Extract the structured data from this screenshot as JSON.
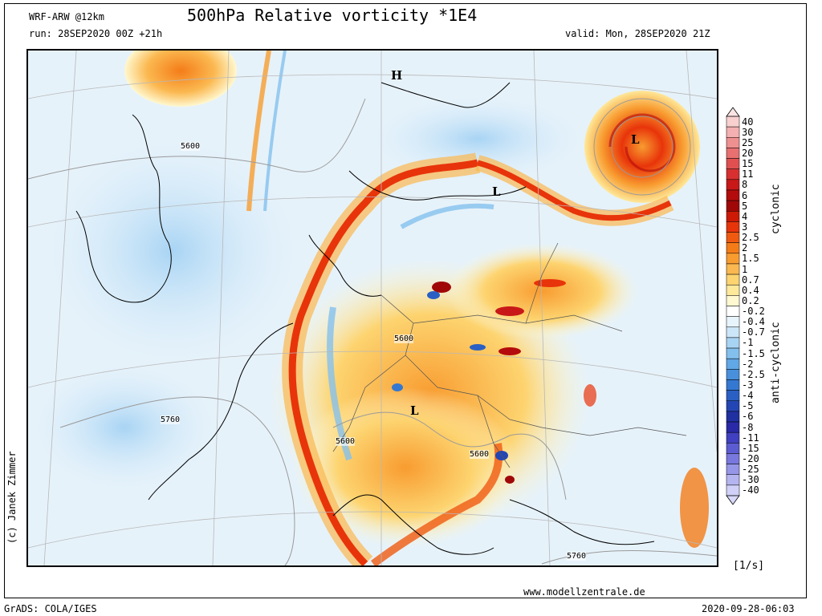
{
  "header": {
    "model": "WRF-ARW @12km",
    "title": "500hPa Relative vorticity *1E4",
    "run": "run: 28SEP2020 00Z +21h",
    "valid": "valid: Mon, 28SEP2020 21Z"
  },
  "map": {
    "pressure_markers": [
      {
        "label": "H"
      },
      {
        "label": "L"
      },
      {
        "label": "L"
      },
      {
        "label": "L"
      }
    ],
    "contour_labels": [
      "5600",
      "5600",
      "5600",
      "5600",
      "5760",
      "5760"
    ]
  },
  "colorbar": {
    "labels": [
      "40",
      "30",
      "25",
      "20",
      "15",
      "11",
      "8",
      "6",
      "5",
      "4",
      "3",
      "2.5",
      "2",
      "1.5",
      "1",
      "0.7",
      "0.4",
      "0.2",
      "-0.2",
      "-0.4",
      "-0.7",
      "-1",
      "-1.5",
      "-2",
      "-2.5",
      "-3",
      "-4",
      "-5",
      "-6",
      "-8",
      "-11",
      "-15",
      "-20",
      "-25",
      "-30",
      "-40"
    ],
    "colors": [
      "#f8d0d0",
      "#f4b0b0",
      "#ef9090",
      "#e87070",
      "#e05050",
      "#d83030",
      "#c81818",
      "#b40c0c",
      "#a00808",
      "#cc1a06",
      "#e8340a",
      "#f05a10",
      "#f47c18",
      "#f89c30",
      "#fbb850",
      "#fdd470",
      "#fee89a",
      "#fff8d0",
      "#ffffff",
      "#e8f4fc",
      "#cce6f8",
      "#a8d4f4",
      "#84c0ee",
      "#60a8e6",
      "#4890dc",
      "#3478d2",
      "#2a60c4",
      "#2446b4",
      "#2030a0",
      "#2a2aa8",
      "#4040c0",
      "#5c5cd2",
      "#7878de",
      "#9696e8",
      "#b4b4f0",
      "#d0d0f8"
    ],
    "cyclonic_label": "cyclonic",
    "anticyclonic_label": "anti-cyclonic",
    "units": "[1/s]"
  },
  "footer": {
    "copyright": "(c) Janek Zimmer",
    "website": "www.modellzentrale.de",
    "grads": "GrADS: COLA/IGES",
    "timestamp": "2020-09-28-06:03"
  }
}
